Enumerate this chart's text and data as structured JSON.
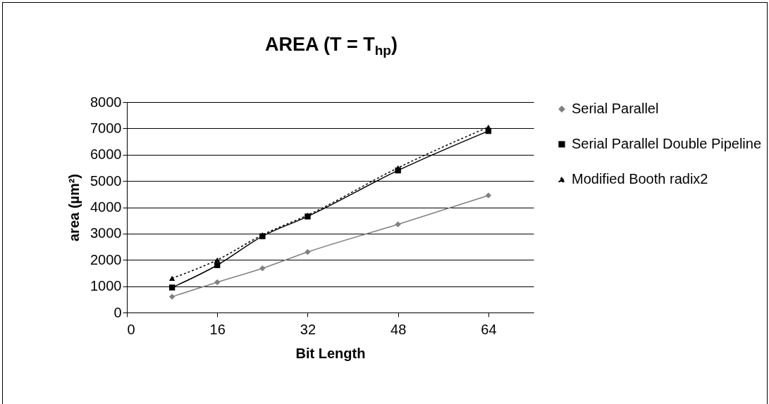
{
  "chart_data": {
    "type": "line",
    "title": "AREA (T = T$_{hp}$)",
    "xlabel": "Bit Length",
    "ylabel": "area (µm²)",
    "x": [
      8,
      16,
      24,
      32,
      48,
      64
    ],
    "series": [
      {
        "name": "Serial Parallel",
        "color": "#808080",
        "marker": "diamond",
        "line_style": "solid",
        "values": [
          600,
          1150,
          1680,
          2300,
          3350,
          4450
        ]
      },
      {
        "name": "Serial Parallel Double Pipeline",
        "color": "#000000",
        "marker": "square",
        "line_style": "solid",
        "values": [
          950,
          1800,
          2900,
          3650,
          5400,
          6900
        ]
      },
      {
        "name": "Modified Booth radix2",
        "color": "#000000",
        "marker": "triangle",
        "line_style": "dotted",
        "values": [
          1300,
          2000,
          2950,
          3700,
          5500,
          7050
        ]
      }
    ],
    "xlim": [
      0,
      72
    ],
    "xticks": [
      0,
      16,
      32,
      48,
      64
    ],
    "ylim": [
      0,
      8000
    ],
    "yticks": [
      0,
      1000,
      2000,
      3000,
      4000,
      5000,
      6000,
      7000,
      8000
    ],
    "grid": "y",
    "legend": "right"
  }
}
